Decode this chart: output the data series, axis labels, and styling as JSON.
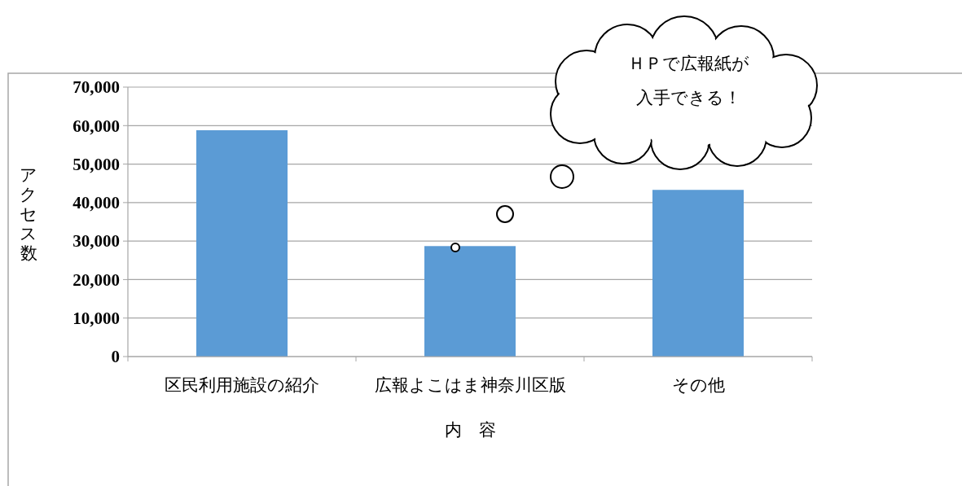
{
  "chart_data": {
    "type": "bar",
    "xlabel": "内　容",
    "ylabel": "アクセス数",
    "categories": [
      "区民利用施設の紹介",
      "広報よこはま神奈川区版",
      "その他"
    ],
    "values": [
      58800,
      28700,
      43300
    ],
    "color": "#5b9bd5",
    "ylim": [
      0,
      70000
    ],
    "yticks": [
      {
        "value": 0,
        "label": "0"
      },
      {
        "value": 10000,
        "label": "10,000"
      },
      {
        "value": 20000,
        "label": "20,000"
      },
      {
        "value": 30000,
        "label": "30,000"
      },
      {
        "value": 40000,
        "label": "40,000"
      },
      {
        "value": 50000,
        "label": "50,000"
      },
      {
        "value": 60000,
        "label": "60,000"
      },
      {
        "value": 70000,
        "label": "70,000"
      }
    ],
    "grid": "y",
    "annotations": [
      "ＨＰで広報紙が",
      "入手できる！"
    ]
  }
}
